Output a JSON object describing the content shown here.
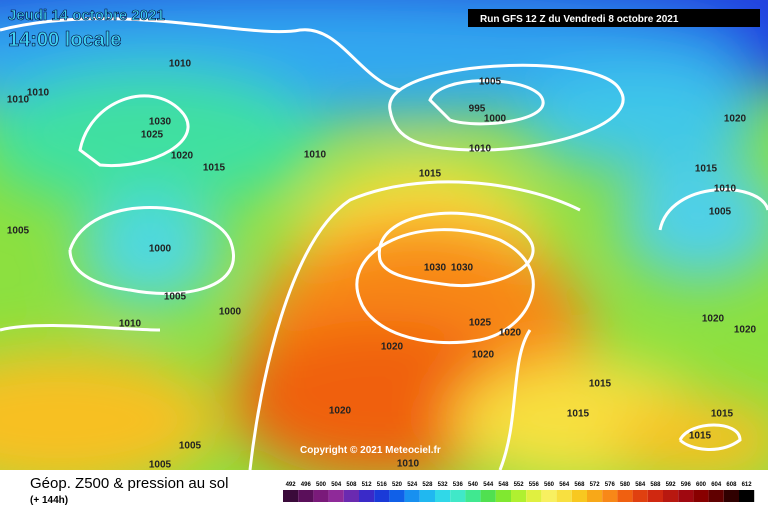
{
  "header": {
    "date": "Jeudi 14 octobre 2021",
    "time": "14:00 locale",
    "run": "Run GFS 12 Z du Vendredi 8 octobre 2021"
  },
  "copyright": "Copyright © 2021 Meteociel.fr",
  "footer": {
    "title": "Géop. Z500 & pression au sol",
    "lead": "(+ 144h)"
  },
  "isobar_labels": [
    "1010",
    "1010",
    "1010",
    "1030",
    "1025",
    "1020",
    "1015",
    "1010",
    "1005",
    "995",
    "1000",
    "1010",
    "1015",
    "1020",
    "1015",
    "1010",
    "1005",
    "1005",
    "1000",
    "1030",
    "1030",
    "1005",
    "1000",
    "1010",
    "1025",
    "1020",
    "1020",
    "1020",
    "1020",
    "1020",
    "1015",
    "1020",
    "1015",
    "1015",
    "1015",
    "1005",
    "1005",
    "1010"
  ],
  "legend": {
    "ticks": [
      492,
      496,
      500,
      504,
      508,
      512,
      516,
      520,
      524,
      528,
      532,
      536,
      540,
      544,
      548,
      552,
      556,
      560,
      564,
      568,
      572,
      576,
      580,
      584,
      588,
      592,
      596,
      600,
      604,
      608,
      612
    ],
    "colors": [
      "#3a0a3a",
      "#5a0f5a",
      "#7a1a7a",
      "#8f2a99",
      "#6a2ab0",
      "#3a2ac8",
      "#1a3ad8",
      "#1060e8",
      "#1890f0",
      "#20b8f0",
      "#30d8e8",
      "#40e8c8",
      "#40e890",
      "#50e050",
      "#80e830",
      "#b0f030",
      "#e0f040",
      "#f8f060",
      "#f8e040",
      "#f8c820",
      "#f8a818",
      "#f88818",
      "#f06010",
      "#e04010",
      "#d02810",
      "#b81810",
      "#a00810",
      "#880000",
      "#600000",
      "#300000",
      "#000000"
    ]
  }
}
